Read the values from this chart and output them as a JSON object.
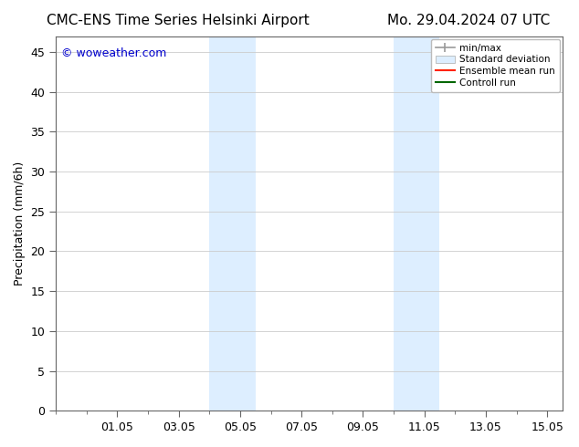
{
  "title_left": "CMC-ENS Time Series Helsinki Airport",
  "title_right": "Mo. 29.04.2024 07 UTC",
  "ylabel": "Precipitation (mm/6h)",
  "watermark": "© woweather.com",
  "watermark_color": "#0000cc",
  "xtick_labels": [
    "01.05",
    "03.05",
    "05.05",
    "07.05",
    "09.05",
    "11.05",
    "13.05",
    "15.05"
  ],
  "xtick_positions": [
    2,
    4,
    6,
    8,
    10,
    12,
    14,
    16
  ],
  "ylim": [
    0,
    47
  ],
  "ytick_positions": [
    0,
    5,
    10,
    15,
    20,
    25,
    30,
    35,
    40,
    45
  ],
  "shaded_regions": [
    {
      "x_start": 5.0,
      "x_end": 6.5
    },
    {
      "x_start": 11.0,
      "x_end": 12.5
    }
  ],
  "legend_labels": [
    "min/max",
    "Standard deviation",
    "Ensemble mean run",
    "Controll run"
  ],
  "bg_color": "#ffffff",
  "plot_bg_color": "#ffffff",
  "shaded_color": "#ddeeff",
  "grid_color": "#cccccc",
  "tick_label_size": 9,
  "axis_label_size": 9,
  "title_size": 11,
  "xlim": [
    0,
    16.5
  ]
}
